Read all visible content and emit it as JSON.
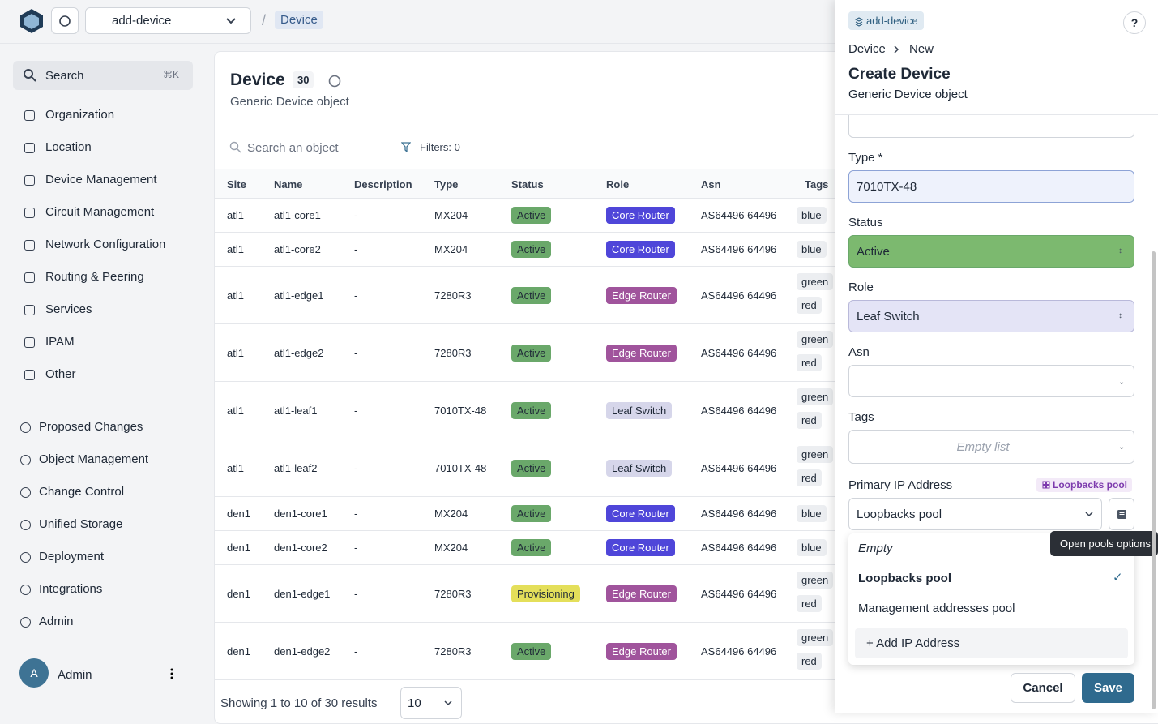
{
  "topbar": {
    "branch": "add-device",
    "separator": "/",
    "breadcrumb": "Device"
  },
  "sidebar": {
    "search": "Search",
    "shortcut": "⌘K",
    "nav": [
      "Organization",
      "Location",
      "Device Management",
      "Circuit Management",
      "Network Configuration",
      "Routing & Peering",
      "Services",
      "IPAM",
      "Other"
    ],
    "nav_secondary": [
      "Proposed Changes",
      "Object Management",
      "Change Control",
      "Unified Storage",
      "Deployment",
      "Integrations",
      "Admin"
    ],
    "user": {
      "initial": "A",
      "name": "Admin"
    }
  },
  "main": {
    "title": "Device",
    "count": 30,
    "subtitle": "Generic Device object",
    "search_placeholder": "Search an object",
    "filters": "Filters: 0",
    "table": {
      "columns": [
        "Site",
        "Name",
        "Description",
        "Type",
        "Status",
        "Role",
        "Asn",
        "Tags"
      ],
      "rows": [
        {
          "site": "atl1",
          "name": "atl1-core1",
          "description": "-",
          "type": "MX204",
          "status": "Active",
          "role": "Core Router",
          "asn": "AS64496 64496",
          "tags": [
            "blue"
          ],
          "status_color": "#6aa86a",
          "role_color": "#4f46d9"
        },
        {
          "site": "atl1",
          "name": "atl1-core2",
          "description": "-",
          "type": "MX204",
          "status": "Active",
          "role": "Core Router",
          "asn": "AS64496 64496",
          "tags": [
            "blue"
          ],
          "status_color": "#6aa86a",
          "role_color": "#4f46d9"
        },
        {
          "site": "atl1",
          "name": "atl1-edge1",
          "description": "-",
          "type": "7280R3",
          "status": "Active",
          "role": "Edge Router",
          "asn": "AS64496 64496",
          "tags": [
            "green",
            "red"
          ],
          "status_color": "#6aa86a",
          "role_color": "#a0549c"
        },
        {
          "site": "atl1",
          "name": "atl1-edge2",
          "description": "-",
          "type": "7280R3",
          "status": "Active",
          "role": "Edge Router",
          "asn": "AS64496 64496",
          "tags": [
            "green",
            "red"
          ],
          "status_color": "#6aa86a",
          "role_color": "#a0549c"
        },
        {
          "site": "atl1",
          "name": "atl1-leaf1",
          "description": "-",
          "type": "7010TX-48",
          "status": "Active",
          "role": "Leaf Switch",
          "asn": "AS64496 64496",
          "tags": [
            "green",
            "red"
          ],
          "status_color": "#6aa86a",
          "role_color": "#d6d6ea"
        },
        {
          "site": "atl1",
          "name": "atl1-leaf2",
          "description": "-",
          "type": "7010TX-48",
          "status": "Active",
          "role": "Leaf Switch",
          "asn": "AS64496 64496",
          "tags": [
            "green",
            "red"
          ],
          "status_color": "#6aa86a",
          "role_color": "#d6d6ea"
        },
        {
          "site": "den1",
          "name": "den1-core1",
          "description": "-",
          "type": "MX204",
          "status": "Active",
          "role": "Core Router",
          "asn": "AS64496 64496",
          "tags": [
            "blue"
          ],
          "status_color": "#6aa86a",
          "role_color": "#4f46d9"
        },
        {
          "site": "den1",
          "name": "den1-core2",
          "description": "-",
          "type": "MX204",
          "status": "Active",
          "role": "Core Router",
          "asn": "AS64496 64496",
          "tags": [
            "blue"
          ],
          "status_color": "#6aa86a",
          "role_color": "#4f46d9"
        },
        {
          "site": "den1",
          "name": "den1-edge1",
          "description": "-",
          "type": "7280R3",
          "status": "Provisioning",
          "role": "Edge Router",
          "asn": "AS64496 64496",
          "tags": [
            "green",
            "red"
          ],
          "status_color": "#e4df5a",
          "role_color": "#a0549c"
        },
        {
          "site": "den1",
          "name": "den1-edge2",
          "description": "-",
          "type": "7280R3",
          "status": "Active",
          "role": "Edge Router",
          "asn": "AS64496 64496",
          "tags": [
            "green",
            "red"
          ],
          "status_color": "#6aa86a",
          "role_color": "#a0549c"
        }
      ]
    },
    "footer": "Showing 1 to 10 of 30 results",
    "page_size": 10
  },
  "panel": {
    "branch": "add-device",
    "help": "?",
    "breadcrumb": [
      "Device",
      "New"
    ],
    "title": "Create Device",
    "subtitle": "Generic Device object",
    "fields": [
      {
        "label": "Type *",
        "value": "7010TX-48"
      },
      {
        "label": "Status",
        "value": "Active"
      },
      {
        "label": "Role",
        "value": "Leaf Switch"
      },
      {
        "label": "Asn"
      },
      {
        "label": "Tags",
        "placeholder": "Empty list"
      }
    ],
    "primary_ip": {
      "label": "Primary IP Address",
      "pool_badge": "Loopbacks pool",
      "value": "Loopbacks pool",
      "options": [
        "Empty",
        "Loopbacks pool",
        "Management addresses pool"
      ],
      "selected": 1,
      "add": "+ Add IP Address",
      "tooltip": "Open pools options"
    },
    "actions": [
      "Cancel",
      "Save"
    ]
  }
}
